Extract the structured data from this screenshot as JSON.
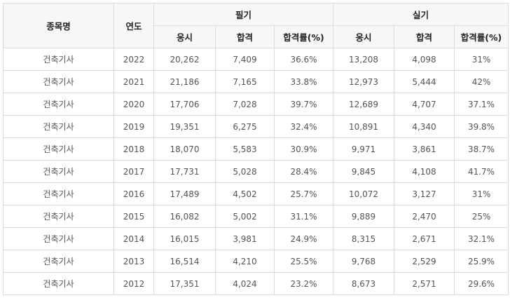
{
  "table": {
    "headers": {
      "item": "종목명",
      "year": "연도",
      "written": "필기",
      "practical": "실기",
      "sub": [
        "응시",
        "합격",
        "합격률(%)",
        "응시",
        "합격",
        "합격률(%)"
      ]
    },
    "rows": [
      [
        "건축기사",
        "2022",
        "20,262",
        "7,409",
        "36.6%",
        "13,208",
        "4,098",
        "31%"
      ],
      [
        "건축기사",
        "2021",
        "21,186",
        "7,165",
        "33.8%",
        "12,973",
        "5,444",
        "42%"
      ],
      [
        "건축기사",
        "2020",
        "17,706",
        "7,028",
        "39.7%",
        "12,689",
        "4,707",
        "37.1%"
      ],
      [
        "건축기사",
        "2019",
        "19,351",
        "6,275",
        "32.4%",
        "10,891",
        "4,340",
        "39.8%"
      ],
      [
        "건축기사",
        "2018",
        "18,070",
        "5,583",
        "30.9%",
        "9,971",
        "3,861",
        "38.7%"
      ],
      [
        "건축기사",
        "2017",
        "17,731",
        "5,028",
        "28.4%",
        "9,845",
        "4,108",
        "41.7%"
      ],
      [
        "건축기사",
        "2016",
        "17,489",
        "4,502",
        "25.7%",
        "10,072",
        "3,127",
        "31%"
      ],
      [
        "건축기사",
        "2015",
        "16,082",
        "5,002",
        "31.1%",
        "9,889",
        "2,470",
        "25%"
      ],
      [
        "건축기사",
        "2014",
        "16,015",
        "3,981",
        "24.9%",
        "8,315",
        "2,671",
        "32.1%"
      ],
      [
        "건축기사",
        "2013",
        "16,514",
        "4,210",
        "25.5%",
        "9,768",
        "2,529",
        "25.9%"
      ],
      [
        "건축기사",
        "2012",
        "17,351",
        "4,024",
        "23.2%",
        "8,673",
        "2,571",
        "29.6%"
      ]
    ]
  }
}
